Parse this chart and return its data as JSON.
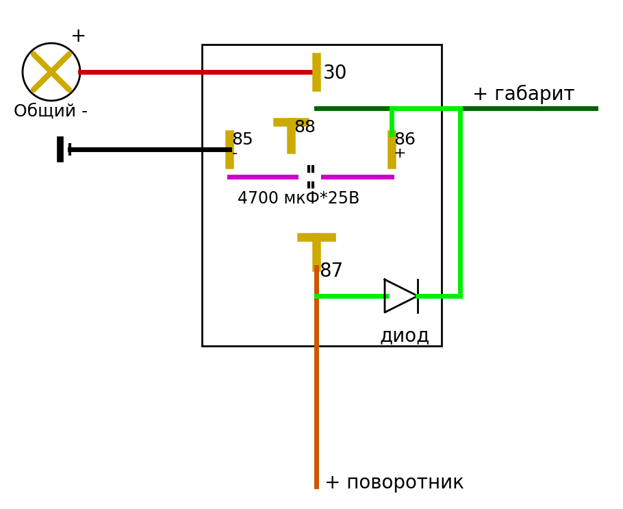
{
  "bg_color": "#ffffff",
  "colors": {
    "red": "#cc0000",
    "black": "#000000",
    "dark_green": "#006400",
    "lime_green": "#00ee00",
    "yellow": "#ccaa00",
    "magenta": "#cc00cc",
    "orange": "#cc5500",
    "white": "#ffffff"
  },
  "labels": {
    "plus": "+",
    "obschiy": "Общий -",
    "gabarity": "+ габарит",
    "pov": "+ поворотник",
    "diod": "диод",
    "cap": "4700 мкФ*25В",
    "n30": "30",
    "n85": "85",
    "n86": "86",
    "n87": "87",
    "n88": "88",
    "minus": "-",
    "plusSign": "+"
  }
}
